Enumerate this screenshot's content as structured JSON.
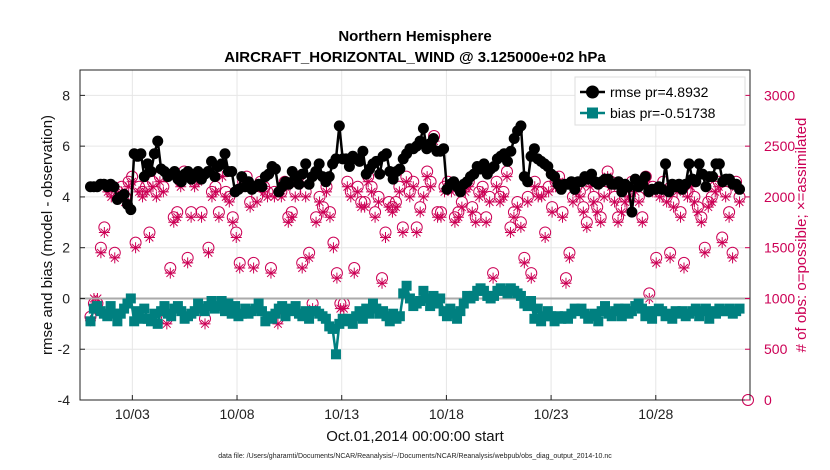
{
  "chart_data": {
    "type": "line",
    "title": "Northern Hemisphere",
    "subtitle": "AIRCRAFT_HORIZONTAL_WIND @ 3.125000e+02 hPa",
    "xlabel": "Oct.01,2014 00:00:00 start",
    "ylabel": "rmse and bias (model - observation)",
    "ylabel_right": "# of obs: o=possible; ×=assimilated",
    "footnote": "data file: /Users/gharamti/Documents/NCAR/Reanalysis/~/Documents/NCAR/Reanalysis/webpub/obs_diag_output_2014-10.nc",
    "xlim": [
      1,
      33
    ],
    "ylim": [
      -4,
      9
    ],
    "ylim_right": [
      0,
      3250
    ],
    "x_ticks": [
      {
        "x": 3.5,
        "label": "10/03"
      },
      {
        "x": 8.5,
        "label": "10/08"
      },
      {
        "x": 13.5,
        "label": "10/13"
      },
      {
        "x": 18.5,
        "label": "10/18"
      },
      {
        "x": 23.5,
        "label": "10/23"
      },
      {
        "x": 28.5,
        "label": "10/28"
      }
    ],
    "y_ticks": [
      -4,
      -2,
      0,
      2,
      4,
      6,
      8
    ],
    "y_ticks_right": [
      0,
      500,
      1000,
      1500,
      2000,
      2500,
      3000
    ],
    "grid": true,
    "legend_position": "top-right",
    "colors": {
      "rmse": "#000000",
      "bias": "#008080",
      "obs": "#cc0055",
      "zero_line": "#aaaaaa"
    },
    "series": [
      {
        "name": "rmse pr=4.8932",
        "marker": "circle",
        "values": [
          4.4,
          4.4,
          4.4,
          4.5,
          4.5,
          4.4,
          4.5,
          4.4,
          3.9,
          4.0,
          4.1,
          3.7,
          3.5,
          5.7,
          5.6,
          5.7,
          4.8,
          5.3,
          5.0,
          5.7,
          6.2,
          5.1,
          5.0,
          4.8,
          4.9,
          5.0,
          4.7,
          4.6,
          4.9,
          5.0,
          4.7,
          4.9,
          5.0,
          4.7,
          4.9,
          5.0,
          5.4,
          4.8,
          5.2,
          5.3,
          5.7,
          5.0,
          5.0,
          4.2,
          4.3,
          4.8,
          4.4,
          4.6,
          4.3,
          4.4,
          4.5,
          4.4,
          4.8,
          4.9,
          5.2,
          5.1,
          4.2,
          4.4,
          4.6,
          4.5,
          5.0,
          4.8,
          4.5,
          4.9,
          5.3,
          4.5,
          4.8,
          5.0,
          5.3,
          4.8,
          4.6,
          4.8,
          5.3,
          5.5,
          6.8,
          5.5,
          5.5,
          5.2,
          5.6,
          5.5,
          5.4,
          5.8,
          4.9,
          5.1,
          5.3,
          5.4,
          4.9,
          5.6,
          5.7,
          5.0,
          4.7,
          5.0,
          5.1,
          5.5,
          5.7,
          5.9,
          5.9,
          6.0,
          6.2,
          6.7,
          5.9,
          6.1,
          6.3,
          5.8,
          5.8,
          5.9,
          4.3,
          4.5,
          4.6,
          4.4,
          4.2,
          4.5,
          4.6,
          4.8,
          4.9,
          5.2,
          5.1,
          5.3,
          4.9,
          5.1,
          5.2,
          5.5,
          5.6,
          5.7,
          5.4,
          5.8,
          6.3,
          6.6,
          6.8,
          4.8,
          4.6,
          5.6,
          5.9,
          5.5,
          5.4,
          5.3,
          5.2,
          4.9,
          4.8,
          4.5,
          4.3,
          4.5,
          4.5,
          4.6,
          4.3,
          4.6,
          4.6,
          4.8,
          4.7,
          4.9,
          4.6,
          4.5,
          4.6,
          4.7,
          4.7,
          4.5,
          4.5,
          4.6,
          4.2,
          4.5,
          4.4,
          3.4,
          4.7,
          4.4,
          4.5,
          4.8,
          4.2,
          4.3,
          4.3,
          4.4,
          4.3,
          5.3,
          4.2,
          4.5,
          4.4,
          4.5,
          4.3,
          4.5,
          5.3,
          4.7,
          4.6,
          5.3,
          4.9,
          4.4,
          4.8,
          4.8,
          5.3,
          5.3,
          4.6,
          4.7,
          4.7,
          4.5,
          4.5,
          4.3
        ]
      },
      {
        "name": "bias pr=-0.51738",
        "marker": "square",
        "values": [
          -0.9,
          -0.4,
          -0.3,
          -0.5,
          -0.6,
          -0.7,
          -0.3,
          -0.6,
          -0.9,
          -0.6,
          -0.4,
          -0.2,
          0.0,
          -0.9,
          -0.5,
          -0.8,
          -0.4,
          -0.8,
          -0.9,
          -0.6,
          -1.0,
          -0.5,
          -0.3,
          -0.6,
          -0.7,
          -0.4,
          -0.3,
          -0.5,
          -0.8,
          -0.7,
          -0.6,
          -0.5,
          -0.2,
          -0.4,
          -0.5,
          -0.3,
          -0.1,
          -0.4,
          -0.3,
          -0.1,
          -0.5,
          -0.2,
          -0.6,
          -0.3,
          -0.7,
          -0.6,
          -0.4,
          -0.6,
          -0.5,
          -0.4,
          -0.2,
          -0.5,
          -0.9,
          -0.7,
          -0.8,
          -0.6,
          -0.4,
          -0.3,
          -0.7,
          -0.4,
          -0.5,
          -0.3,
          -0.6,
          -0.7,
          -0.5,
          -0.8,
          -0.5,
          -0.5,
          -0.6,
          -0.7,
          -0.8,
          -1.1,
          -1.2,
          -2.2,
          -1.0,
          -0.8,
          -0.9,
          -0.8,
          -1.0,
          -0.7,
          -0.5,
          -0.8,
          -0.4,
          -0.6,
          -0.2,
          -0.4,
          -0.6,
          -0.5,
          -0.7,
          -0.9,
          -0.6,
          -0.8,
          -0.7,
          0.2,
          0.5,
          0.0,
          -0.3,
          -0.2,
          -0.1,
          0.3,
          0.0,
          -0.3,
          0.1,
          -0.2,
          0.0,
          -0.5,
          -0.7,
          -0.4,
          -0.6,
          -0.8,
          -0.5,
          -0.2,
          0.1,
          0.0,
          0.1,
          0.3,
          0.4,
          0.3,
          0.1,
          0.0,
          0.1,
          0.3,
          0.4,
          0.3,
          0.2,
          0.4,
          0.3,
          0.2,
          0.1,
          -0.2,
          -0.3,
          -0.1,
          -0.8,
          -0.4,
          -0.9,
          -0.7,
          -0.5,
          -0.7,
          -0.9,
          -0.7,
          -0.8,
          -0.7,
          -0.8,
          -0.6,
          -0.4,
          -0.5,
          -0.4,
          -0.6,
          -0.8,
          -0.7,
          -0.6,
          -0.9,
          -0.5,
          -0.3,
          -0.6,
          -0.7,
          -0.5,
          -0.4,
          -0.7,
          -0.4,
          -0.6,
          -0.5,
          -0.3,
          -0.2,
          -0.4,
          -0.7,
          -0.5,
          -0.8,
          -0.5,
          -0.4,
          -0.5,
          -0.7,
          -0.6,
          -0.8,
          -0.5,
          -0.6,
          -0.5,
          -0.7,
          -0.6,
          -0.5,
          -0.4,
          -0.7,
          -0.5,
          -0.4,
          -0.8,
          -0.5,
          -0.6,
          -0.4,
          -0.5,
          -0.5,
          -0.4,
          -0.6,
          -0.5,
          -0.4
        ]
      },
      {
        "name": "obs possible",
        "axis": "right",
        "marker": "open-circle",
        "values": [
          820,
          950,
          950,
          1500,
          1700,
          2100,
          2050,
          1450,
          2050,
          2100,
          2000,
          2150,
          2200,
          1550,
          2100,
          2050,
          2100,
          1650,
          2150,
          2050,
          2200,
          2100,
          800,
          1300,
          1800,
          1850,
          2150,
          2250,
          1400,
          1850,
          2150,
          2200,
          1850,
          800,
          1500,
          2050,
          2100,
          1850,
          2250,
          2050,
          2000,
          1800,
          1650,
          1350,
          2150,
          2200,
          1950,
          1350,
          2000,
          2150,
          2100,
          2050,
          1300,
          2050,
          800,
          2050,
          2150,
          1800,
          1850,
          2050,
          2200,
          1350,
          2050,
          1450,
          950,
          1800,
          2000,
          1900,
          2100,
          1850,
          1550,
          1250,
          950,
          950,
          2150,
          2050,
          1300,
          2100,
          1950,
          1950,
          2200,
          2100,
          1850,
          2000,
          1200,
          1650,
          1950,
          1900,
          1950,
          2100,
          1700,
          2200,
          2050,
          2150,
          1700,
          1900,
          2050,
          2250,
          2150,
          2600,
          1850,
          1850,
          2100,
          2150,
          2100,
          1800,
          1850,
          1950,
          2100,
          2150,
          1900,
          1800,
          2050,
          2100,
          1800,
          2000,
          1250,
          2150,
          2000,
          2050,
          2250,
          1700,
          1850,
          1950,
          1750,
          1400,
          2000,
          1250,
          2150,
          2050,
          2050,
          1650,
          2100,
          1900,
          2150,
          2200,
          1850,
          1200,
          1450,
          2000,
          2100,
          2050,
          1900,
          1750,
          2150,
          2000,
          1900,
          1800,
          2050,
          2250,
          2150,
          2000,
          1800,
          1900,
          2000,
          2050,
          2150,
          2100,
          2000,
          1800,
          2200,
          1050,
          2100,
          1400,
          2050,
          2150,
          2000,
          1450,
          1950,
          2100,
          1850,
          1350,
          2050,
          2150,
          2000,
          1900,
          1800,
          1500,
          1950,
          2000,
          2100,
          2150,
          1600,
          2050,
          1850,
          1450,
          2150,
          2000
        ]
      },
      {
        "name": "obs assimilated",
        "axis": "right",
        "marker": "star",
        "values": [
          780,
          1000,
          1000,
          1450,
          1650,
          2050,
          2000,
          1400,
          2000,
          2050,
          1950,
          2100,
          2150,
          1500,
          2050,
          2000,
          2050,
          1600,
          2100,
          2000,
          2150,
          2050,
          750,
          1250,
          1750,
          1800,
          2100,
          2200,
          1350,
          1800,
          2100,
          2150,
          1800,
          750,
          1450,
          2000,
          2050,
          1800,
          2200,
          2000,
          1950,
          1750,
          1600,
          1300,
          2100,
          2150,
          1900,
          1300,
          1950,
          2100,
          2050,
          2000,
          1250,
          2000,
          750,
          2000,
          2100,
          1750,
          1800,
          2000,
          2150,
          1300,
          2000,
          1400,
          900,
          1750,
          1950,
          1850,
          2050,
          1800,
          1500,
          1200,
          900,
          900,
          2100,
          2000,
          1250,
          2050,
          1900,
          1900,
          2150,
          2050,
          1800,
          1950,
          1150,
          1600,
          1900,
          1850,
          1900,
          2050,
          1650,
          2150,
          2000,
          2100,
          1650,
          1850,
          2000,
          2200,
          2100,
          2550,
          1800,
          1800,
          2050,
          2100,
          2050,
          1750,
          1800,
          1900,
          2050,
          2100,
          1850,
          1750,
          2000,
          2050,
          1750,
          1950,
          1200,
          2100,
          1950,
          2000,
          2200,
          1650,
          1800,
          1900,
          1700,
          1350,
          1950,
          1200,
          2100,
          2000,
          2000,
          1600,
          2050,
          1850,
          2100,
          2150,
          1800,
          1150,
          1400,
          1950,
          2050,
          2000,
          1850,
          1700,
          2100,
          1950,
          1850,
          1750,
          2000,
          2200,
          2100,
          1950,
          1750,
          1850,
          1950,
          2000,
          2100,
          2050,
          1950,
          1750,
          2150,
          1000,
          2050,
          1350,
          2000,
          2100,
          1950,
          1400,
          1900,
          2050,
          1800,
          1300,
          2000,
          2100,
          1950,
          1850,
          1750,
          1450,
          1900,
          1950,
          2050,
          2100,
          1550,
          2000,
          1800,
          1400,
          2100,
          1950
        ]
      }
    ]
  }
}
